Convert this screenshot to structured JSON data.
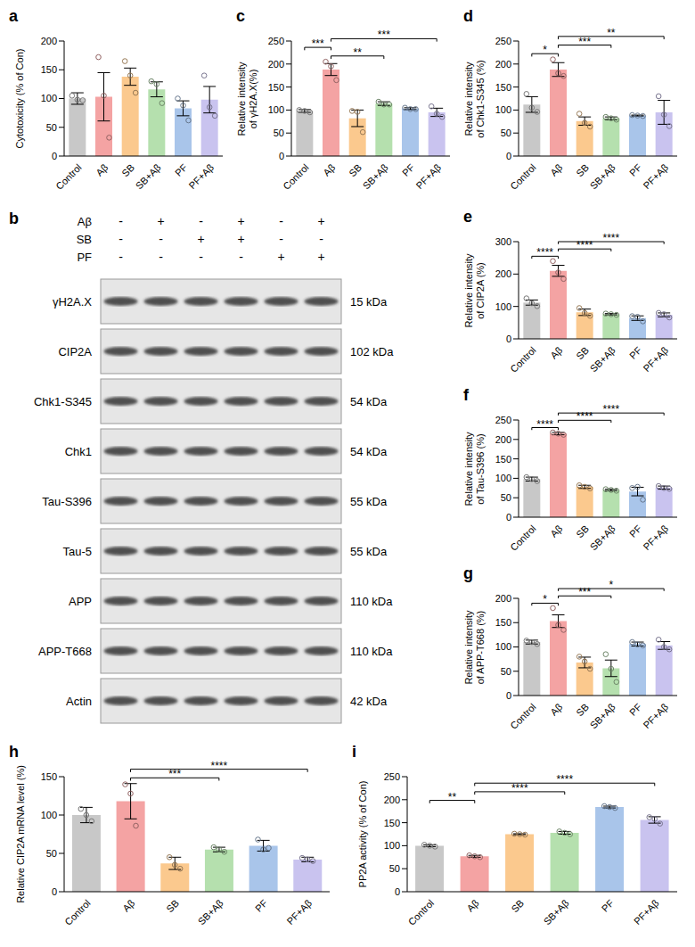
{
  "chart_data": [
    {
      "type": "bar",
      "title": "a",
      "y_label": [
        "Cytotoxicity (% of Con)"
      ],
      "categories": [
        "Control",
        "Aβ",
        "SB",
        "SB+Aβ",
        "PF",
        "PF+Aβ"
      ],
      "values": [
        100,
        103,
        138,
        116,
        83,
        98
      ],
      "errors": [
        10,
        42,
        15,
        13,
        13,
        23
      ],
      "points": [
        [
          105,
          98,
          97
        ],
        [
          172,
          105,
          32
        ],
        [
          165,
          140,
          110
        ],
        [
          130,
          125,
          92
        ],
        [
          100,
          88,
          62
        ],
        [
          140,
          85,
          70
        ]
      ],
      "colors": [
        "#c8c8c8",
        "#f4a3a3",
        "#fbc98e",
        "#b5e0ae",
        "#a9c5ea",
        "#c9c3ef"
      ],
      "ylim": [
        0,
        200
      ],
      "yticks": [
        0,
        50,
        100,
        150,
        200
      ],
      "significance": []
    },
    {
      "type": "bar",
      "title": "c",
      "y_label": [
        "Relative intensity",
        "of γH2A.X(%)"
      ],
      "categories": [
        "Control",
        "Aβ",
        "SB",
        "SB+Aβ",
        "PF",
        "PF+Aβ"
      ],
      "values": [
        98,
        188,
        82,
        114,
        103,
        95
      ],
      "errors": [
        3,
        13,
        18,
        4,
        2,
        9
      ],
      "points": [
        [
          100,
          98,
          95
        ],
        [
          205,
          195,
          165
        ],
        [
          98,
          96,
          52
        ],
        [
          118,
          112,
          112
        ],
        [
          105,
          102,
          102
        ],
        [
          108,
          92,
          85
        ]
      ],
      "colors": [
        "#c8c8c8",
        "#f4a3a3",
        "#fbc98e",
        "#b5e0ae",
        "#a9c5ea",
        "#c9c3ef"
      ],
      "ylim": [
        0,
        250
      ],
      "yticks": [
        0,
        50,
        100,
        150,
        200,
        250
      ],
      "significance": [
        {
          "from": "Aβ",
          "to": "SB+Aβ",
          "label": "**"
        },
        {
          "from": "Control",
          "to": "Aβ",
          "label": "***"
        },
        {
          "from": "Aβ",
          "to": "PF+Aβ",
          "label": "***"
        }
      ]
    },
    {
      "type": "bar",
      "title": "d",
      "y_label": [
        "Relative intensity",
        "of Chk1-S345 (%)"
      ],
      "categories": [
        "Control",
        "Aβ",
        "SB",
        "SB+Aβ",
        "PF",
        "PF+Aβ"
      ],
      "values": [
        112,
        188,
        76,
        82,
        88,
        95
      ],
      "errors": [
        17,
        15,
        9,
        3,
        1,
        26
      ],
      "points": [
        [
          135,
          105,
          96
        ],
        [
          210,
          180,
          174
        ],
        [
          92,
          72,
          64
        ],
        [
          85,
          82,
          79
        ],
        [
          89,
          88,
          87
        ],
        [
          130,
          90,
          65
        ]
      ],
      "colors": [
        "#c8c8c8",
        "#f4a3a3",
        "#fbc98e",
        "#b5e0ae",
        "#a9c5ea",
        "#c9c3ef"
      ],
      "ylim": [
        0,
        250
      ],
      "yticks": [
        0,
        50,
        100,
        150,
        200,
        250
      ],
      "significance": [
        {
          "from": "Control",
          "to": "Aβ",
          "label": "*"
        },
        {
          "from": "Aβ",
          "to": "SB+Aβ",
          "label": "***"
        },
        {
          "from": "Aβ",
          "to": "PF+Aβ",
          "label": "**"
        }
      ]
    },
    {
      "type": "bar",
      "title": "e",
      "y_label": [
        "Relative intensity",
        "of CIP2A (%)"
      ],
      "categories": [
        "Control",
        "Aβ",
        "SB",
        "SB+Aβ",
        "PF",
        "PF+Aβ"
      ],
      "values": [
        112,
        210,
        82,
        76,
        64,
        74
      ],
      "errors": [
        8,
        17,
        10,
        2,
        7,
        6
      ],
      "points": [
        [
          125,
          110,
          101
        ],
        [
          240,
          205,
          185
        ],
        [
          95,
          80,
          71
        ],
        [
          78,
          76,
          74
        ],
        [
          70,
          68,
          54
        ],
        [
          80,
          76,
          66
        ]
      ],
      "colors": [
        "#c8c8c8",
        "#f4a3a3",
        "#fbc98e",
        "#b5e0ae",
        "#a9c5ea",
        "#c9c3ef"
      ],
      "ylim": [
        0,
        300
      ],
      "yticks": [
        0,
        100,
        200,
        300
      ],
      "significance": [
        {
          "from": "Control",
          "to": "Aβ",
          "label": "****"
        },
        {
          "from": "Aβ",
          "to": "SB+Aβ",
          "label": "****"
        },
        {
          "from": "Aβ",
          "to": "PF+Aβ",
          "label": "****"
        }
      ]
    },
    {
      "type": "bar",
      "title": "f",
      "y_label": [
        "Relative intensity",
        "of Tau-S396 (%)"
      ],
      "categories": [
        "Control",
        "Aβ",
        "SB",
        "SB+Aβ",
        "PF",
        "PF+Aβ"
      ],
      "values": [
        98,
        215,
        78,
        70,
        66,
        76
      ],
      "errors": [
        5,
        3,
        4,
        2,
        11,
        4
      ],
      "points": [
        [
          103,
          98,
          93
        ],
        [
          218,
          215,
          212
        ],
        [
          82,
          78,
          74
        ],
        [
          72,
          70,
          68
        ],
        [
          75,
          78,
          45
        ],
        [
          80,
          75,
          73
        ]
      ],
      "colors": [
        "#c8c8c8",
        "#f4a3a3",
        "#fbc98e",
        "#b5e0ae",
        "#a9c5ea",
        "#c9c3ef"
      ],
      "ylim": [
        0,
        250
      ],
      "yticks": [
        0,
        50,
        100,
        150,
        200,
        250
      ],
      "significance": [
        {
          "from": "Control",
          "to": "Aβ",
          "label": "****"
        },
        {
          "from": "Aβ",
          "to": "SB+Aβ",
          "label": "****"
        },
        {
          "from": "Aβ",
          "to": "PF+Aβ",
          "label": "****"
        }
      ]
    },
    {
      "type": "bar",
      "title": "g",
      "y_label": [
        "Relative intensity",
        "of APP-T668 (%)"
      ],
      "categories": [
        "Control",
        "Aβ",
        "SB",
        "SB+Aβ",
        "PF",
        "PF+Aβ"
      ],
      "values": [
        110,
        153,
        68,
        56,
        106,
        103
      ],
      "errors": [
        4,
        13,
        11,
        17,
        4,
        8
      ],
      "points": [
        [
          113,
          110,
          106
        ],
        [
          180,
          145,
          135
        ],
        [
          80,
          70,
          55
        ],
        [
          85,
          55,
          28
        ],
        [
          110,
          105,
          103
        ],
        [
          115,
          100,
          95
        ]
      ],
      "colors": [
        "#c8c8c8",
        "#f4a3a3",
        "#fbc98e",
        "#b5e0ae",
        "#a9c5ea",
        "#c9c3ef"
      ],
      "ylim": [
        0,
        200
      ],
      "yticks": [
        0,
        50,
        100,
        150,
        200
      ],
      "significance": [
        {
          "from": "Control",
          "to": "Aβ",
          "label": "*"
        },
        {
          "from": "Aβ",
          "to": "SB+Aβ",
          "label": "***"
        },
        {
          "from": "Aβ",
          "to": "PF+Aβ",
          "label": "*"
        }
      ]
    },
    {
      "type": "bar",
      "title": "h",
      "y_label": [
        "Relative CIP2A mRNA level (%)"
      ],
      "categories": [
        "Control",
        "Aβ",
        "SB",
        "SB+Aβ",
        "PF",
        "PF+Aβ"
      ],
      "values": [
        100,
        118,
        37,
        55,
        60,
        42
      ],
      "errors": [
        10,
        23,
        8,
        3,
        7,
        3
      ],
      "points": [
        [
          108,
          100,
          92
        ],
        [
          140,
          128,
          86
        ],
        [
          45,
          35,
          30
        ],
        [
          58,
          55,
          52
        ],
        [
          68,
          55,
          57
        ],
        [
          44,
          42,
          40
        ]
      ],
      "colors": [
        "#c8c8c8",
        "#f4a3a3",
        "#fbc98e",
        "#b5e0ae",
        "#a9c5ea",
        "#c9c3ef"
      ],
      "ylim": [
        0,
        150
      ],
      "yticks": [
        0,
        50,
        100,
        150
      ],
      "significance": [
        {
          "from": "Aβ",
          "to": "SB+Aβ",
          "label": "***"
        },
        {
          "from": "Aβ",
          "to": "PF+Aβ",
          "label": "****"
        }
      ]
    },
    {
      "type": "bar",
      "title": "i",
      "y_label": [
        "PP2A activity (% of Con)"
      ],
      "categories": [
        "Control",
        "Aβ",
        "SB",
        "SB+Aβ",
        "PF",
        "PF+Aβ"
      ],
      "values": [
        100,
        77,
        125,
        128,
        184,
        156
      ],
      "errors": [
        2,
        2,
        1,
        3,
        2,
        7
      ],
      "points": [
        [
          102,
          100,
          98
        ],
        [
          79,
          77,
          75
        ],
        [
          126,
          125,
          124
        ],
        [
          131,
          128,
          125
        ],
        [
          186,
          184,
          182
        ],
        [
          162,
          158,
          148
        ]
      ],
      "colors": [
        "#c8c8c8",
        "#f4a3a3",
        "#fbc98e",
        "#b5e0ae",
        "#a9c5ea",
        "#c9c3ef"
      ],
      "ylim": [
        0,
        250
      ],
      "yticks": [
        0,
        50,
        100,
        150,
        200,
        250
      ],
      "significance": [
        {
          "from": "Control",
          "to": "Aβ",
          "label": "**"
        },
        {
          "from": "Aβ",
          "to": "SB+Aβ",
          "label": "****"
        },
        {
          "from": "Aβ",
          "to": "PF+Aβ",
          "label": "****"
        }
      ]
    }
  ],
  "blot": {
    "title": "b",
    "conditions": [
      {
        "name": "Aβ",
        "signs": [
          "-",
          "+",
          "-",
          "+",
          "-",
          "+"
        ]
      },
      {
        "name": "SB",
        "signs": [
          "-",
          "-",
          "+",
          "+",
          "-",
          "-"
        ]
      },
      {
        "name": "PF",
        "signs": [
          "-",
          "-",
          "-",
          "-",
          "+",
          "+"
        ]
      }
    ],
    "rows": [
      {
        "label": "γH2A.X",
        "mw": "15 kDa"
      },
      {
        "label": "CIP2A",
        "mw": "102 kDa"
      },
      {
        "label": "Chk1-S345",
        "mw": "54 kDa"
      },
      {
        "label": "Chk1",
        "mw": "54 kDa"
      },
      {
        "label": "Tau-S396",
        "mw": "55 kDa"
      },
      {
        "label": "Tau-5",
        "mw": "55 kDa"
      },
      {
        "label": "APP",
        "mw": "110 kDa"
      },
      {
        "label": "APP-T668",
        "mw": "110 kDa"
      },
      {
        "label": "Actin",
        "mw": "42 kDa"
      }
    ]
  }
}
